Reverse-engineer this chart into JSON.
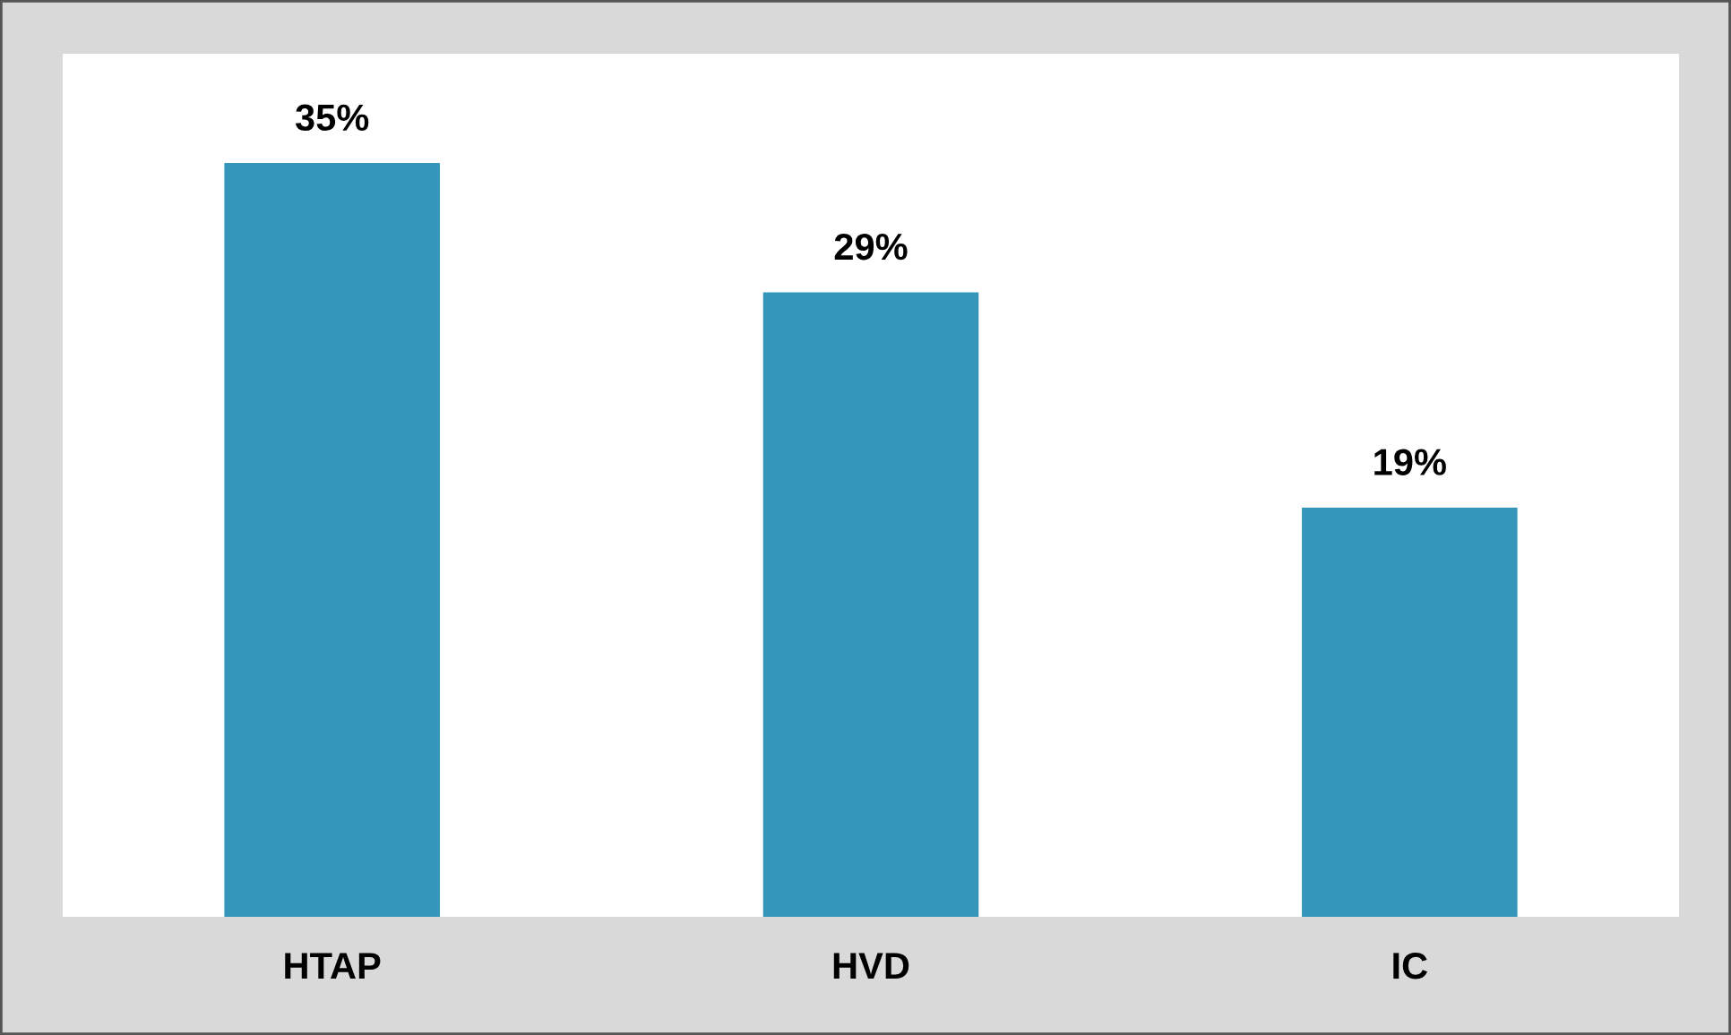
{
  "chart_data": {
    "type": "bar",
    "categories": [
      "HTAP",
      "HVD",
      "IC"
    ],
    "values": [
      35,
      29,
      19
    ],
    "color": "#3596bc",
    "data_labels": true,
    "value_labels": [
      "35%",
      "29%",
      "19%"
    ],
    "grid": false,
    "legend": false
  }
}
